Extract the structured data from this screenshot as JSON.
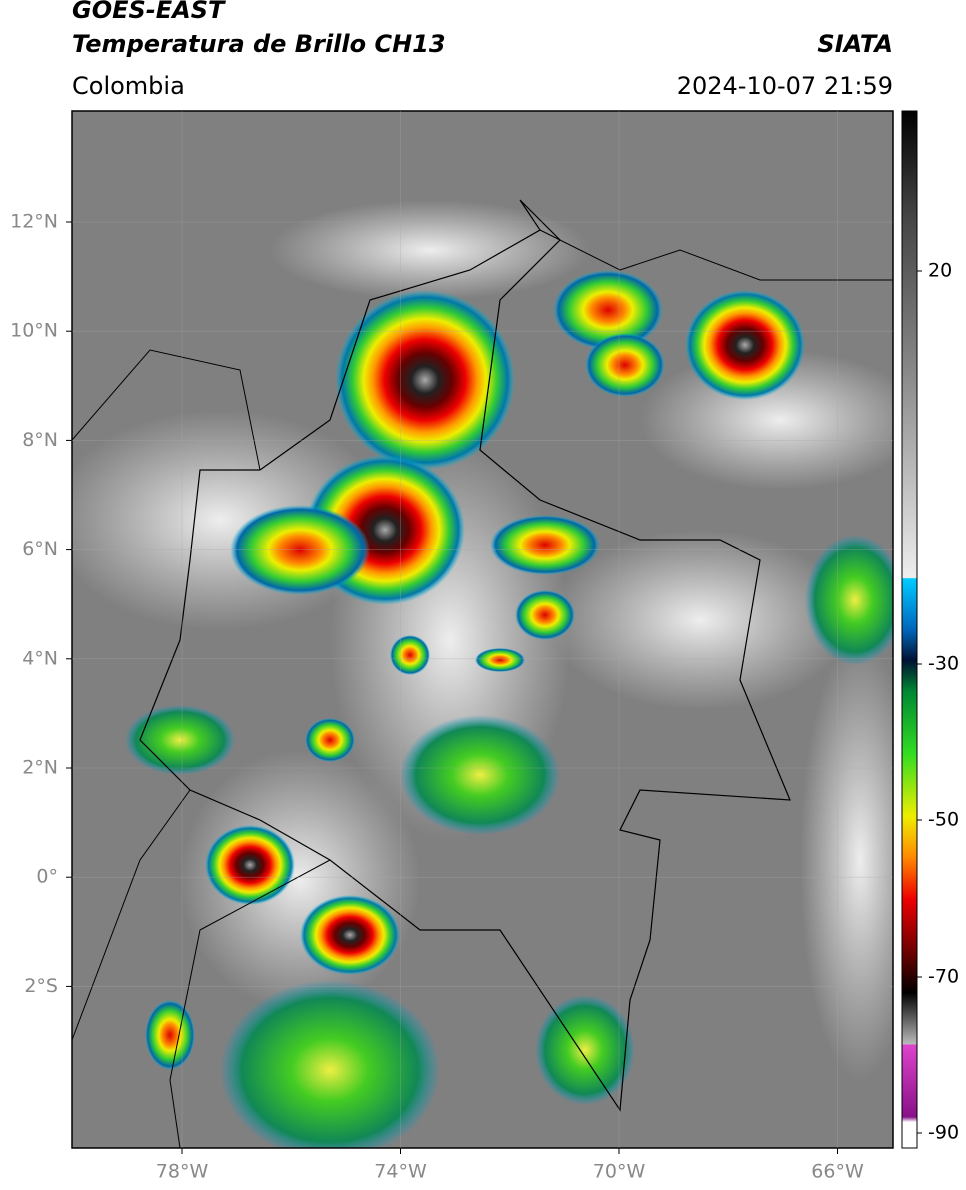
{
  "header": {
    "satellite": "GOES-EAST",
    "product": "Temperatura de Brillo CH13",
    "source": "SIATA",
    "region": "Colombia",
    "datetime": "2024-10-07 21:59"
  },
  "map": {
    "lat_labels": [
      "12°N",
      "10°N",
      "8°N",
      "6°N",
      "4°N",
      "2°N",
      "0°",
      "2°S"
    ],
    "lon_labels": [
      "78°W",
      "74°W",
      "70°W",
      "66°W"
    ]
  },
  "colorbar": {
    "tick_labels": [
      "20",
      "-30",
      "-50",
      "-70",
      "-90"
    ]
  }
}
